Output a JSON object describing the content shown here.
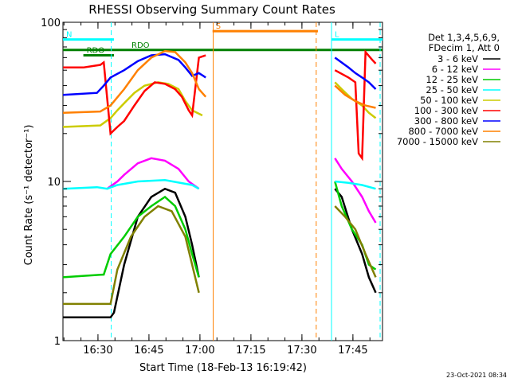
{
  "chart_data": {
    "type": "line",
    "title": "RHESSI Observing Summary Count Rates",
    "xlabel": "Start Time (18-Feb-13 16:19:42)",
    "ylabel": "Count Rate (s⁻¹ detector⁻¹)",
    "footer": "23-Oct-2021 08:34",
    "x_unit": "minutes after 16:19:42",
    "xlim": [
      0,
      94
    ],
    "ylim": [
      1,
      100
    ],
    "y_scale": "log",
    "x_ticks": [
      {
        "label": "16:30",
        "value": 10.3
      },
      {
        "label": "16:45",
        "value": 25.3
      },
      {
        "label": "17:00",
        "value": 40.3
      },
      {
        "label": "17:15",
        "value": 55.3
      },
      {
        "label": "17:30",
        "value": 70.3
      },
      {
        "label": "17:45",
        "value": 85.3
      }
    ],
    "y_ticks": [
      {
        "label": "1",
        "value": 1
      },
      {
        "label": "10",
        "value": 10
      },
      {
        "label": "100",
        "value": 100
      }
    ],
    "legend": {
      "placement": "right",
      "header": [
        "Det 1,3,4,5,6,9,",
        "FDecim 1, Att 0"
      ]
    },
    "series": [
      {
        "name": "3 - 6 keV",
        "color": "#000000",
        "points": [
          [
            0,
            1.4
          ],
          [
            14,
            1.4
          ],
          [
            15,
            1.5
          ],
          [
            18,
            3
          ],
          [
            22,
            6
          ],
          [
            26,
            8
          ],
          [
            30,
            9
          ],
          [
            33,
            8.5
          ],
          [
            36,
            6
          ],
          [
            38,
            4
          ],
          [
            40,
            2.5
          ],
          [
            -1,
            null
          ],
          [
            80,
            9
          ],
          [
            82,
            8
          ],
          [
            85,
            5
          ],
          [
            88,
            3.5
          ],
          [
            90,
            2.5
          ],
          [
            92,
            2
          ]
        ]
      },
      {
        "name": "6 - 12 keV",
        "color": "#ff00ff",
        "points": [
          [
            13,
            9
          ],
          [
            16,
            10
          ],
          [
            18,
            11
          ],
          [
            22,
            13
          ],
          [
            26,
            14
          ],
          [
            30,
            13.5
          ],
          [
            34,
            12
          ],
          [
            37,
            10
          ],
          [
            40,
            9
          ],
          [
            -1,
            null
          ],
          [
            80,
            14
          ],
          [
            82,
            12
          ],
          [
            85,
            10
          ],
          [
            88,
            8
          ],
          [
            90,
            6.5
          ],
          [
            92,
            5.5
          ]
        ]
      },
      {
        "name": "12 - 25 keV",
        "color": "#00cc00",
        "points": [
          [
            0,
            2.5
          ],
          [
            12,
            2.6
          ],
          [
            14,
            3.5
          ],
          [
            18,
            4.5
          ],
          [
            22,
            6
          ],
          [
            26,
            7
          ],
          [
            30,
            8
          ],
          [
            33,
            7
          ],
          [
            36,
            5
          ],
          [
            38,
            3.5
          ],
          [
            40,
            2.5
          ],
          [
            -1,
            null
          ],
          [
            80,
            10
          ],
          [
            82,
            7
          ],
          [
            85,
            5
          ],
          [
            88,
            4
          ],
          [
            90,
            3
          ],
          [
            92,
            2.8
          ]
        ]
      },
      {
        "name": "25 - 50 keV",
        "color": "#00ffff",
        "points": [
          [
            0,
            9
          ],
          [
            10,
            9.2
          ],
          [
            13,
            9
          ],
          [
            16,
            9.5
          ],
          [
            22,
            10
          ],
          [
            30,
            10.2
          ],
          [
            38,
            9.5
          ],
          [
            40,
            9
          ],
          [
            -1,
            null
          ],
          [
            80,
            10
          ],
          [
            84,
            9.8
          ],
          [
            88,
            9.5
          ],
          [
            92,
            9
          ]
        ]
      },
      {
        "name": "50 - 100 keV",
        "color": "#cccc00",
        "points": [
          [
            0,
            22
          ],
          [
            11,
            22.5
          ],
          [
            14,
            25
          ],
          [
            16,
            28
          ],
          [
            18,
            31
          ],
          [
            21,
            36
          ],
          [
            24,
            40
          ],
          [
            28,
            42
          ],
          [
            31,
            41
          ],
          [
            34,
            38
          ],
          [
            36,
            32
          ],
          [
            38,
            28
          ],
          [
            41,
            26
          ],
          [
            -1,
            null
          ],
          [
            80,
            42
          ],
          [
            82,
            38
          ],
          [
            85,
            33
          ],
          [
            88,
            30
          ],
          [
            90,
            27
          ],
          [
            92,
            25
          ]
        ]
      },
      {
        "name": "100 - 300 keV",
        "color": "#ff0000",
        "points": [
          [
            0,
            52
          ],
          [
            6,
            52
          ],
          [
            11,
            54
          ],
          [
            12,
            56
          ],
          [
            14,
            20
          ],
          [
            16,
            22
          ],
          [
            18,
            24
          ],
          [
            21,
            30
          ],
          [
            24,
            37
          ],
          [
            27,
            42
          ],
          [
            30,
            41
          ],
          [
            33,
            38
          ],
          [
            35,
            34
          ],
          [
            37,
            28
          ],
          [
            38,
            26
          ],
          [
            40,
            60
          ],
          [
            42,
            62
          ],
          [
            -1,
            null
          ],
          [
            80,
            50
          ],
          [
            84,
            45
          ],
          [
            86,
            42
          ],
          [
            87,
            15
          ],
          [
            88,
            14
          ],
          [
            89,
            65
          ],
          [
            91,
            58
          ],
          [
            92,
            55
          ]
        ]
      },
      {
        "name": "300 - 800 keV",
        "color": "#0000ff",
        "points": [
          [
            0,
            35
          ],
          [
            10,
            36
          ],
          [
            12,
            40
          ],
          [
            14,
            45
          ],
          [
            18,
            50
          ],
          [
            22,
            57
          ],
          [
            26,
            62
          ],
          [
            30,
            63
          ],
          [
            34,
            58
          ],
          [
            36,
            52
          ],
          [
            38,
            46
          ],
          [
            40,
            48
          ],
          [
            42,
            45
          ],
          [
            -1,
            null
          ],
          [
            80,
            60
          ],
          [
            84,
            52
          ],
          [
            86,
            48
          ],
          [
            88,
            45
          ],
          [
            90,
            42
          ],
          [
            92,
            38
          ]
        ]
      },
      {
        "name": "800 - 7000 keV",
        "color": "#ff8000",
        "points": [
          [
            0,
            27
          ],
          [
            11,
            27.5
          ],
          [
            14,
            30
          ],
          [
            18,
            38
          ],
          [
            22,
            50
          ],
          [
            26,
            60
          ],
          [
            30,
            66
          ],
          [
            33,
            65
          ],
          [
            36,
            56
          ],
          [
            38,
            48
          ],
          [
            40,
            38
          ],
          [
            42,
            34
          ],
          [
            -1,
            null
          ],
          [
            80,
            40
          ],
          [
            83,
            35
          ],
          [
            86,
            32
          ],
          [
            89,
            30
          ],
          [
            92,
            29
          ]
        ]
      },
      {
        "name": "7000 - 15000 keV",
        "color": "#808000",
        "points": [
          [
            0,
            1.7
          ],
          [
            14,
            1.7
          ],
          [
            16,
            2.8
          ],
          [
            20,
            4.5
          ],
          [
            24,
            6
          ],
          [
            28,
            7
          ],
          [
            32,
            6.5
          ],
          [
            36,
            4.5
          ],
          [
            38,
            3
          ],
          [
            40,
            2
          ],
          [
            -1,
            null
          ],
          [
            80,
            7
          ],
          [
            83,
            6
          ],
          [
            86,
            5
          ],
          [
            89,
            3.5
          ],
          [
            92,
            2.5
          ]
        ]
      }
    ],
    "flags": [
      {
        "label": "N",
        "color": "#00ffff",
        "level": 78,
        "x0": 0,
        "x1": 15
      },
      {
        "label": "RDO",
        "color": "#008000",
        "level": 67,
        "x0": 0,
        "x1": 94
      },
      {
        "label": "RDO",
        "color": "#008000",
        "level": 62,
        "x0": 6,
        "x1": 15
      },
      {
        "label": "S",
        "color": "#ff8000",
        "level": 88,
        "x0": 44,
        "x1": 75
      },
      {
        "label": "L",
        "color": "#00ffff",
        "level": 78,
        "x0": 79,
        "x1": 94
      }
    ],
    "vertical_markers": [
      {
        "x": 14.2,
        "color": "#00ffff",
        "style": "dashed"
      },
      {
        "x": 44.2,
        "color": "#ff8000",
        "style": "solid"
      },
      {
        "x": 74.5,
        "color": "#ff8000",
        "style": "dashed"
      },
      {
        "x": 79.0,
        "color": "#00ffff",
        "style": "solid"
      },
      {
        "x": 93.3,
        "color": "#00ffff",
        "style": "dashed"
      }
    ]
  }
}
